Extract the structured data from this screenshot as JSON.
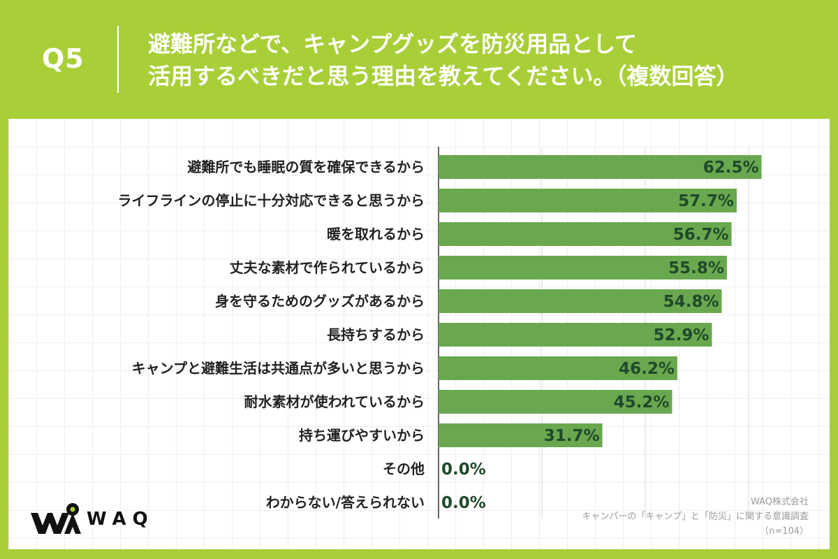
{
  "header": {
    "q_label": "Q5",
    "question_line1": "避難所などで、キャンプグッズを防災用品として",
    "question_line2": "活用するべきだと思う理由を教えてください。（複数回答）"
  },
  "colors": {
    "background": "#a9cf38",
    "bar": "#6aa84f",
    "value_text": "#1f4a2a"
  },
  "chart_data": {
    "type": "bar",
    "orientation": "horizontal",
    "title": "避難所などで、キャンプグッズを防災用品として活用するべきだと思う理由を教えてください。（複数回答）",
    "xlabel": "",
    "ylabel": "",
    "xlim": [
      0,
      100
    ],
    "unit": "%",
    "grid": true,
    "categories": [
      "避難所でも睡眠の質を確保できるから",
      "ライフラインの停止に十分対応できると思うから",
      "暖を取れるから",
      "丈夫な素材で作られているから",
      "身を守るためのグッズがあるから",
      "長持ちするから",
      "キャンプと避難生活は共通点が多いと思うから",
      "耐水素材が使われているから",
      "持ち運びやすいから",
      "その他",
      "わからない/答えられない"
    ],
    "values": [
      62.5,
      57.7,
      56.7,
      55.8,
      54.8,
      52.9,
      46.2,
      45.2,
      31.7,
      0.0,
      0.0
    ],
    "value_labels": [
      "62.5%",
      "57.7%",
      "56.7%",
      "55.8%",
      "54.8%",
      "52.9%",
      "46.2%",
      "45.2%",
      "31.7%",
      "0.0%",
      "0.0%"
    ]
  },
  "logo": {
    "icon": "waq-logo-icon",
    "text": "WAQ"
  },
  "source": {
    "company": "WAQ株式会社",
    "survey": "キャンパーの「キャンプ」と「防災」に関する意識調査",
    "sample": "（n=104）"
  }
}
